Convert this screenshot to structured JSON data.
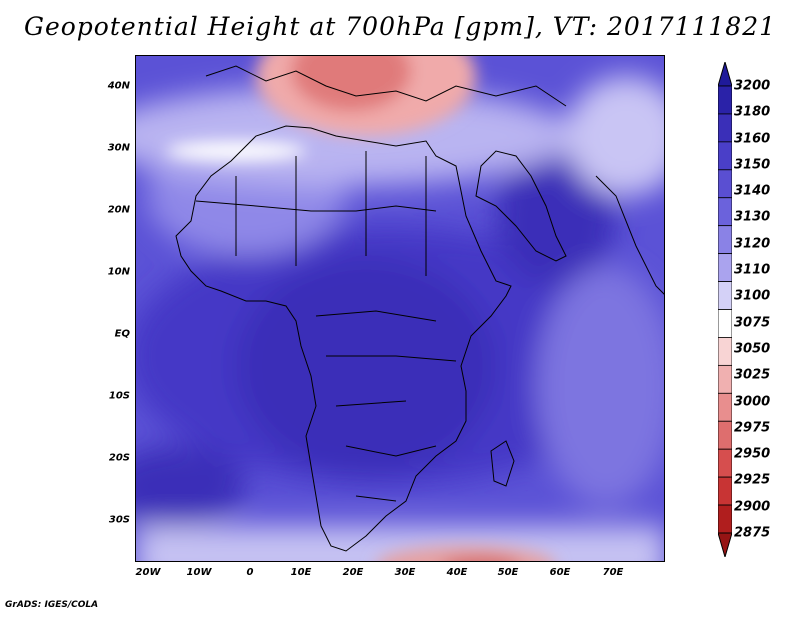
{
  "title": "Geopotential Height at 700hPa [gpm], VT: 2017111821",
  "footer": "GrADS: IGES/COLA",
  "axes": {
    "lat_labels": [
      "40N",
      "30N",
      "20N",
      "10N",
      "EQ",
      "10S",
      "20S",
      "30S"
    ],
    "lon_labels": [
      "20W",
      "10W",
      "0",
      "10E",
      "20E",
      "30E",
      "40E",
      "50E",
      "60E",
      "70E"
    ]
  },
  "colorbar": {
    "labels": [
      "3200",
      "3180",
      "3160",
      "3150",
      "3140",
      "3130",
      "3120",
      "3110",
      "3100",
      "3075",
      "3050",
      "3025",
      "3000",
      "2975",
      "2950",
      "2925",
      "2900",
      "2875"
    ],
    "colors": [
      "#1f1a9a",
      "#2a22a8",
      "#3a2fb8",
      "#4a3fc8",
      "#5a4fd2",
      "#6b62dc",
      "#8a82e6",
      "#aaa3ee",
      "#d4d1f7",
      "#ffffff",
      "#f8d4d4",
      "#f0b0b0",
      "#e88e8e",
      "#de6e6e",
      "#d64e4e",
      "#c83434",
      "#b01e1e",
      "#961414"
    ]
  },
  "chart_data": {
    "type": "heatmap",
    "title": "Geopotential Height at 700hPa [gpm], VT: 2017111821",
    "variable": "Geopotential Height",
    "level": "700hPa",
    "units": "gpm",
    "valid_time": "2017111821",
    "xlim": [
      "20W",
      "80E"
    ],
    "ylim": [
      "36S",
      "45N"
    ],
    "xticks": [
      "20W",
      "10W",
      "0",
      "10E",
      "20E",
      "30E",
      "40E",
      "50E",
      "60E",
      "70E"
    ],
    "yticks": [
      "40N",
      "30N",
      "20N",
      "10N",
      "EQ",
      "10S",
      "20S",
      "30S"
    ],
    "colorbar_levels": [
      2875,
      2900,
      2925,
      2950,
      2975,
      3000,
      3025,
      3050,
      3075,
      3100,
      3110,
      3120,
      3130,
      3140,
      3150,
      3160,
      3180,
      3200
    ],
    "legend_position": "right"
  }
}
